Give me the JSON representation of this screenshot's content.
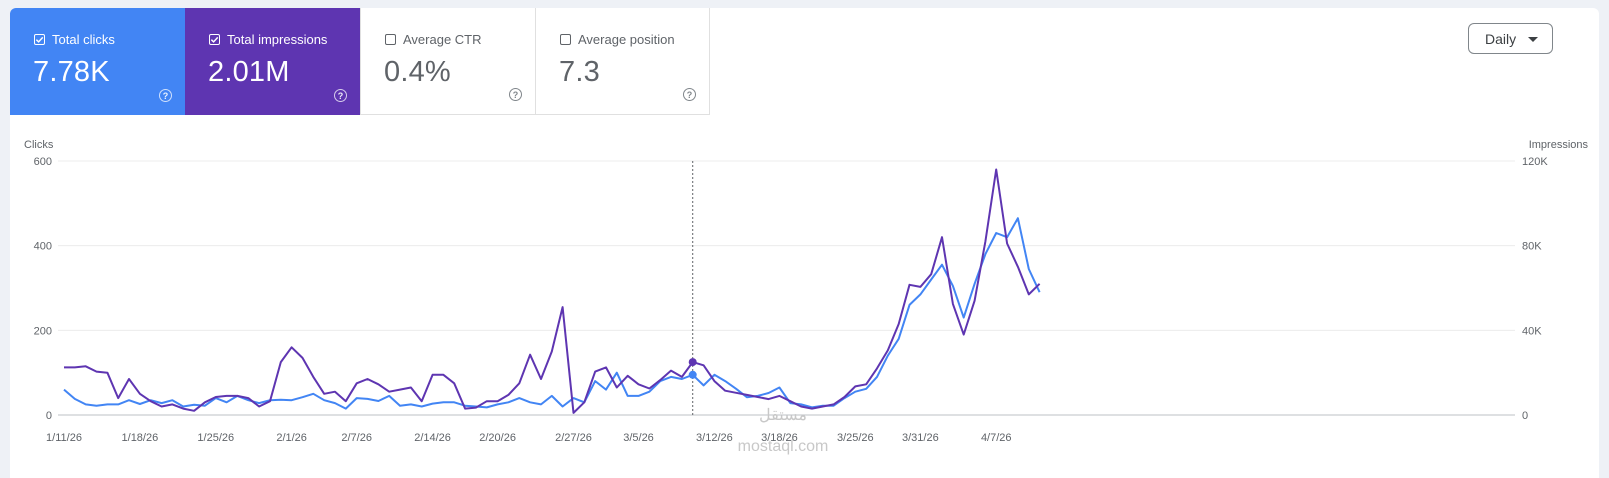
{
  "metrics": {
    "clicks": {
      "label": "Total clicks",
      "value": "7.78K",
      "checked": true,
      "color": "#4285f4"
    },
    "impressions": {
      "label": "Total impressions",
      "value": "2.01M",
      "checked": true,
      "color": "#5e35b1"
    },
    "ctr": {
      "label": "Average CTR",
      "value": "0.4%",
      "checked": false
    },
    "position": {
      "label": "Average position",
      "value": "7.3",
      "checked": false
    },
    "help_glyph": "?"
  },
  "granularity": {
    "label": "Daily"
  },
  "watermark": {
    "arabic": "مستقل",
    "latin": "mostaql.com"
  },
  "chart_data": {
    "type": "line",
    "left_axis": {
      "title": "Clicks",
      "ticks": [
        "600",
        "400",
        "200",
        "0"
      ],
      "ylim": [
        0,
        600
      ]
    },
    "right_axis": {
      "title": "Impressions",
      "ticks": [
        "120K",
        "80K",
        "40K",
        "0"
      ],
      "ylim": [
        0,
        120000
      ]
    },
    "x_tick_labels": [
      "1/11/26",
      "1/18/26",
      "1/25/26",
      "2/1/26",
      "2/7/26",
      "2/14/26",
      "2/20/26",
      "2/27/26",
      "3/5/26",
      "3/12/26",
      "3/18/26",
      "3/25/26",
      "3/31/26",
      "4/7/26"
    ],
    "x_tick_days": [
      0,
      7,
      14,
      21,
      27,
      34,
      40,
      47,
      53,
      60,
      66,
      73,
      79,
      86
    ],
    "hover_day": 58,
    "grid": true,
    "series": [
      {
        "name": "Total clicks",
        "axis": "left",
        "color": "#4285f4",
        "values": [
          60,
          38,
          25,
          22,
          25,
          25,
          35,
          26,
          35,
          28,
          35,
          20,
          24,
          22,
          40,
          30,
          45,
          35,
          28,
          35,
          36,
          35,
          42,
          50,
          35,
          28,
          15,
          40,
          38,
          33,
          45,
          22,
          25,
          20,
          27,
          30,
          30,
          22,
          20,
          18,
          25,
          30,
          40,
          30,
          25,
          45,
          20,
          40,
          30,
          80,
          60,
          100,
          45,
          45,
          55,
          80,
          90,
          85,
          95,
          70,
          95,
          80,
          62,
          42,
          45,
          52,
          65,
          28,
          25,
          18,
          22,
          22,
          40,
          55,
          62,
          90,
          140,
          180,
          260,
          285,
          320,
          355,
          305,
          230,
          310,
          380,
          430,
          420,
          465,
          345,
          290
        ]
      },
      {
        "name": "Total impressions",
        "axis": "right",
        "color": "#5e35b1",
        "values": [
          22500,
          22500,
          23000,
          20500,
          20000,
          8000,
          17000,
          10000,
          6500,
          4000,
          5000,
          3000,
          2000,
          6000,
          8500,
          9000,
          9000,
          8000,
          4000,
          6500,
          25000,
          32000,
          27000,
          18000,
          10000,
          11000,
          6500,
          15000,
          17000,
          14500,
          11000,
          12000,
          13000,
          6500,
          19000,
          19000,
          15000,
          3000,
          3500,
          6500,
          6500,
          9500,
          15000,
          28500,
          17000,
          30000,
          51000,
          1000,
          6000,
          20500,
          22500,
          13000,
          18500,
          14500,
          12500,
          16500,
          21000,
          18000,
          25000,
          23500,
          16000,
          11500,
          10500,
          9500,
          8500,
          7500,
          9000,
          6500,
          4000,
          3000,
          4000,
          5000,
          8500,
          13500,
          14500,
          22000,
          30500,
          43000,
          61500,
          60500,
          66500,
          84000,
          52500,
          38000,
          54000,
          82000,
          116000,
          81000,
          70000,
          57000,
          62000
        ]
      }
    ]
  }
}
